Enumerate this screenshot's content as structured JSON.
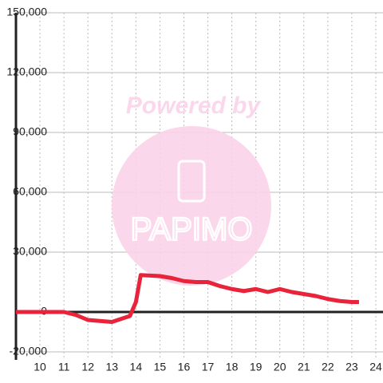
{
  "chart_data": {
    "type": "line",
    "watermark": [
      "Powered by",
      "PAPIMO"
    ],
    "x": [
      9,
      10,
      11,
      11.5,
      12,
      12.5,
      13,
      13.5,
      13.75,
      14,
      14.2,
      15,
      15.5,
      16,
      16.5,
      17,
      17.5,
      18,
      18.5,
      19,
      19.5,
      20,
      20.5,
      21,
      21.5,
      22,
      22.5,
      23,
      23.3
    ],
    "series": [
      {
        "color": "#e8233a",
        "values": [
          0,
          0,
          0,
          -1500,
          -4000,
          -4500,
          -5000,
          -3000,
          -2000,
          5000,
          18500,
          18000,
          17000,
          15500,
          15000,
          15000,
          13000,
          11500,
          10500,
          11500,
          10000,
          11500,
          10000,
          9000,
          8000,
          6500,
          5500,
          5000,
          5000
        ]
      }
    ],
    "xlim": [
      9,
      24.3
    ],
    "xticks": [
      10,
      11,
      12,
      13,
      14,
      15,
      16,
      17,
      18,
      19,
      20,
      21,
      22,
      23,
      24
    ],
    "ylim": [
      -20000,
      150000
    ],
    "yticks": [
      {
        "value": -20000,
        "label": "-20,000"
      },
      0,
      {
        "value": 30000,
        "label": "30,000"
      },
      {
        "value": 60000,
        "label": "60,000"
      },
      {
        "value": 90000,
        "label": "90,000"
      },
      {
        "value": 120000,
        "label": "120,000"
      },
      {
        "value": 150000,
        "label": "150,000"
      }
    ],
    "grid": true
  }
}
